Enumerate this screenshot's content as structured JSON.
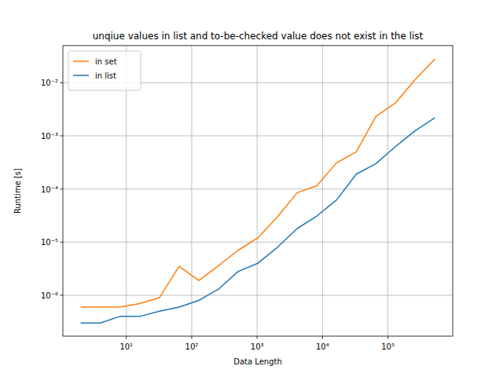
{
  "chart_data": {
    "type": "line",
    "title": "unqiue values in list and to-be-checked value does not exist in the list",
    "x_label": "Data Length",
    "y_label": "Runtime [s]",
    "x": [
      2,
      4,
      8,
      16,
      32,
      64,
      128,
      256,
      512,
      1024,
      2048,
      4096,
      8192,
      16384,
      32768,
      65536,
      131072,
      262144,
      524288
    ],
    "series": [
      {
        "name": "in set",
        "color": "#ff7f0e",
        "values": [
          6e-07,
          6e-07,
          6e-07,
          7e-07,
          9e-07,
          3.5e-06,
          1.9e-06,
          3.6e-06,
          7e-06,
          1.2e-05,
          3e-05,
          8.5e-05,
          0.000115,
          0.00031,
          0.0005,
          0.0023,
          0.0042,
          0.0115,
          0.028
        ]
      },
      {
        "name": "in list",
        "color": "#1f77b4",
        "values": [
          3e-07,
          3e-07,
          4e-07,
          4e-07,
          5e-07,
          6e-07,
          8e-07,
          1.3e-06,
          2.8e-06,
          4e-06,
          8e-06,
          1.8e-05,
          3.1e-05,
          6.2e-05,
          0.00019,
          0.0003,
          0.00063,
          0.00125,
          0.0022
        ]
      }
    ],
    "xlim": [
      1.07,
      980000
    ],
    "ylim": [
      1.7e-07,
      0.05
    ],
    "xticks": [
      {
        "value": 10,
        "label": "10¹"
      },
      {
        "value": 100,
        "label": "10²"
      },
      {
        "value": 1000,
        "label": "10³"
      },
      {
        "value": 10000,
        "label": "10⁴"
      },
      {
        "value": 100000,
        "label": "10⁵"
      }
    ],
    "yticks": [
      {
        "value": 1e-06,
        "label": "10⁻⁶"
      },
      {
        "value": 1e-05,
        "label": "10⁻⁵"
      },
      {
        "value": 0.0001,
        "label": "10⁻⁴"
      },
      {
        "value": 0.001,
        "label": "10⁻³"
      },
      {
        "value": 0.01,
        "label": "10⁻²"
      }
    ],
    "log": true,
    "grid": true,
    "legend": "upper-left"
  }
}
